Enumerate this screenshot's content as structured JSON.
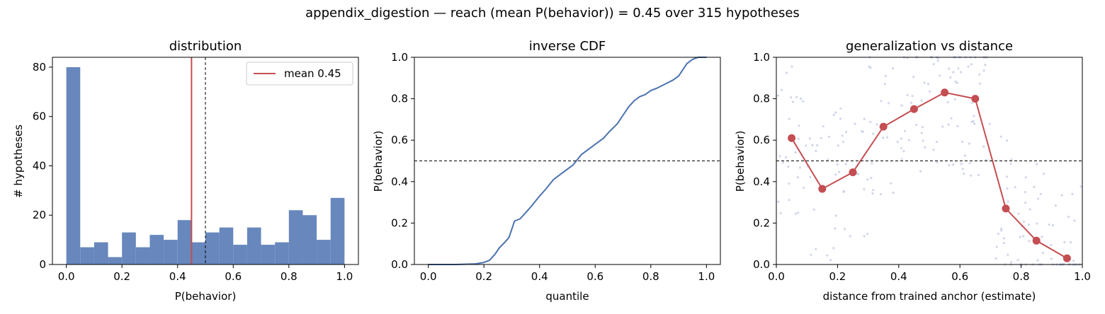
{
  "suptitle": "appendix_digestion  —  reach (mean P(behavior)) = 0.45  over 315 hypotheses",
  "colors": {
    "bar": "#6787bd",
    "mean_line": "#c44e52",
    "cdf_line": "#4c72b0",
    "gen_line": "#c44e52",
    "scatter": "#c5cde6"
  },
  "chart_data": [
    {
      "type": "bar",
      "title": "distribution",
      "xlabel": "P(behavior)",
      "ylabel": "# hypotheses",
      "xlim": [
        -0.05,
        1.05
      ],
      "ylim": [
        0,
        84
      ],
      "xticks": [
        "0.0",
        "0.2",
        "0.4",
        "0.6",
        "0.8",
        "1.0"
      ],
      "yticks": [
        "0",
        "20",
        "40",
        "60",
        "80"
      ],
      "bin_edges": [
        0.0,
        0.05,
        0.1,
        0.15,
        0.2,
        0.25,
        0.3,
        0.35,
        0.4,
        0.45,
        0.5,
        0.55,
        0.6,
        0.65,
        0.7,
        0.75,
        0.8,
        0.85,
        0.9,
        0.95,
        1.0
      ],
      "values": [
        80,
        7,
        9,
        3,
        13,
        7,
        12,
        10,
        18,
        9,
        13,
        15,
        8,
        15,
        8,
        9,
        22,
        20,
        10,
        27
      ],
      "mean": 0.45,
      "threshold": 0.5,
      "legend": {
        "label": "mean 0.45",
        "position": "top-right"
      }
    },
    {
      "type": "line",
      "title": "inverse CDF",
      "xlabel": "quantile",
      "ylabel": "P(behavior)",
      "xlim": [
        -0.05,
        1.05
      ],
      "ylim": [
        0,
        1
      ],
      "xticks": [
        "0.0",
        "0.2",
        "0.4",
        "0.6",
        "0.8",
        "1.0"
      ],
      "yticks": [
        "0.0",
        "0.2",
        "0.4",
        "0.6",
        "0.8",
        "1.0"
      ],
      "threshold": 0.5,
      "x": [
        0.0,
        0.1,
        0.17,
        0.2,
        0.22,
        0.24,
        0.255,
        0.27,
        0.29,
        0.3,
        0.31,
        0.33,
        0.35,
        0.37,
        0.4,
        0.42,
        0.45,
        0.48,
        0.5,
        0.52,
        0.55,
        0.6,
        0.63,
        0.65,
        0.68,
        0.7,
        0.72,
        0.74,
        0.76,
        0.78,
        0.8,
        0.82,
        0.85,
        0.88,
        0.9,
        0.92,
        0.93,
        0.95,
        0.97,
        1.0
      ],
      "y": [
        0.0,
        0.0,
        0.003,
        0.01,
        0.02,
        0.05,
        0.08,
        0.1,
        0.13,
        0.17,
        0.21,
        0.22,
        0.25,
        0.28,
        0.33,
        0.36,
        0.41,
        0.44,
        0.46,
        0.48,
        0.53,
        0.58,
        0.61,
        0.64,
        0.68,
        0.72,
        0.76,
        0.79,
        0.81,
        0.82,
        0.84,
        0.85,
        0.87,
        0.89,
        0.91,
        0.95,
        0.97,
        0.99,
        1.0,
        1.0
      ]
    },
    {
      "type": "line",
      "title": "generalization vs distance",
      "xlabel": "distance from trained anchor (estimate)",
      "ylabel": "P(behavior)",
      "xlim": [
        0,
        1
      ],
      "ylim": [
        0,
        1
      ],
      "xticks": [
        "0.0",
        "0.2",
        "0.4",
        "0.6",
        "0.8",
        "1.0"
      ],
      "yticks": [
        "0.0",
        "0.2",
        "0.4",
        "0.6",
        "0.8",
        "1.0"
      ],
      "threshold": 0.5,
      "x": [
        0.05,
        0.15,
        0.25,
        0.35,
        0.45,
        0.55,
        0.65,
        0.75,
        0.85,
        0.95
      ],
      "y": [
        0.61,
        0.365,
        0.445,
        0.665,
        0.75,
        0.83,
        0.8,
        0.27,
        0.115,
        0.03
      ]
    }
  ]
}
